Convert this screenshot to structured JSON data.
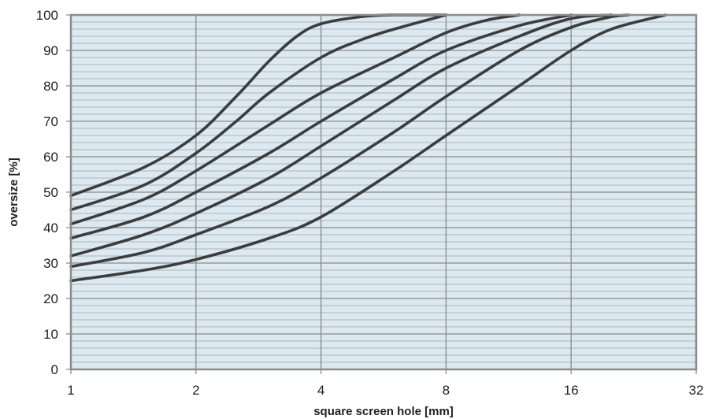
{
  "chart_data": {
    "type": "line",
    "xlabel": "square screen hole [mm]",
    "ylabel": "oversize [%]",
    "x_scale": "log2",
    "xlim": [
      1,
      32
    ],
    "ylim": [
      0,
      100
    ],
    "x_ticks": [
      "1",
      "2",
      "4",
      "8",
      "16",
      "32"
    ],
    "y_ticks": [
      "0",
      "10",
      "20",
      "30",
      "40",
      "50",
      "60",
      "70",
      "80",
      "90",
      "100"
    ],
    "grid": true,
    "minor_grid_step_y": 2,
    "colors": {
      "plot_background": "#dce9f0",
      "minor_grid": "#9aa4ab",
      "major_grid": "#8a8a8a",
      "line": "#3c3c3c",
      "frame": "#8c8c8c"
    },
    "series": [
      {
        "x": [
          1,
          1.5,
          2,
          2.5,
          3,
          3.5,
          4,
          5,
          6,
          8
        ],
        "values": [
          49,
          57,
          66,
          77,
          87,
          94,
          97.5,
          99.5,
          100,
          100
        ]
      },
      {
        "x": [
          1,
          1.5,
          2,
          2.5,
          3,
          4,
          5,
          6,
          8
        ],
        "values": [
          45,
          52,
          61,
          70,
          78,
          88,
          93,
          96,
          100
        ]
      },
      {
        "x": [
          1,
          1.5,
          2,
          3,
          4,
          6,
          8,
          10,
          12
        ],
        "values": [
          41,
          48,
          56,
          69,
          78,
          88,
          95,
          98.5,
          100
        ]
      },
      {
        "x": [
          1,
          1.5,
          2,
          3,
          4,
          6,
          8,
          12,
          16
        ],
        "values": [
          37,
          43,
          50,
          61,
          70,
          82,
          90,
          97,
          100
        ]
      },
      {
        "x": [
          1,
          1.5,
          2,
          3,
          4,
          6,
          8,
          12,
          16,
          20
        ],
        "values": [
          32,
          38,
          44,
          54,
          63,
          76,
          85,
          94,
          99,
          100
        ]
      },
      {
        "x": [
          1,
          1.5,
          2,
          3,
          4,
          6,
          8,
          12,
          16,
          20,
          22
        ],
        "values": [
          29,
          33,
          38,
          46,
          54,
          67,
          77,
          90,
          96.5,
          99.5,
          100
        ]
      },
      {
        "x": [
          1,
          1.5,
          2,
          3,
          4,
          6,
          8,
          12,
          16,
          20,
          27
        ],
        "values": [
          25,
          28,
          31,
          37,
          43,
          56,
          66,
          80,
          90,
          96,
          100
        ]
      }
    ]
  }
}
